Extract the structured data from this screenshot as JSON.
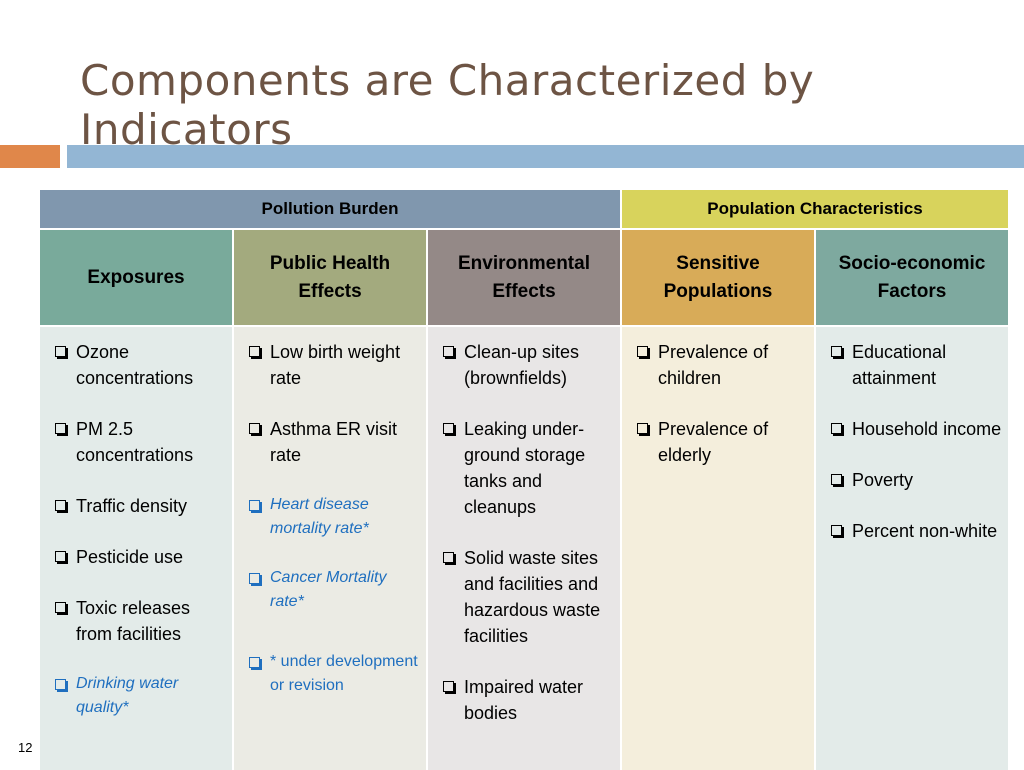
{
  "title": "Components are Characterized by Indicators",
  "page_number": "12",
  "table": {
    "groups": [
      {
        "label": "Pollution Burden",
        "span": 3,
        "color": "#8097ae"
      },
      {
        "label": "Population Characteristics",
        "span": 2,
        "color": "#d8d35c"
      }
    ],
    "columns": [
      {
        "header": "Exposures",
        "color": "#79aa9b",
        "body_color": "#e3ebe9",
        "items": [
          "Ozone concentrations",
          "PM 2.5 concentrations",
          "Traffic density",
          "Pesticide use",
          "Toxic releases from facilities",
          {
            "text": "Drinking water quality*",
            "italic": true
          }
        ]
      },
      {
        "header": "Public Health Effects",
        "color": "#a3aa7e",
        "body_color": "#ebebe4",
        "items": [
          "Low birth weight rate",
          "Asthma ER visit rate",
          {
            "text": "Heart disease mortality rate*",
            "italic": true
          },
          {
            "text": "Cancer Mortality rate*",
            "italic": true
          },
          {
            "text": "* under development or revision",
            "blue": true
          }
        ]
      },
      {
        "header": "Environmental Effects",
        "color": "#948987",
        "body_color": "#e8e6e6",
        "items": [
          "Clean-up sites (brownfields)",
          "Leaking under-ground storage tanks and cleanups",
          "Solid waste sites and facilities and hazardous waste facilities",
          "Impaired water bodies"
        ]
      },
      {
        "header": "Sensitive Populations",
        "color": "#d8ab58",
        "body_color": "#f4eedc",
        "items": [
          "Prevalence of children",
          "Prevalence of elderly"
        ]
      },
      {
        "header": "Socio-economic Factors",
        "color": "#7ea99f",
        "body_color": "#e3ebe9",
        "items": [
          "Educational attainment",
          "Household income",
          "Poverty",
          "Percent non-white"
        ]
      }
    ]
  }
}
